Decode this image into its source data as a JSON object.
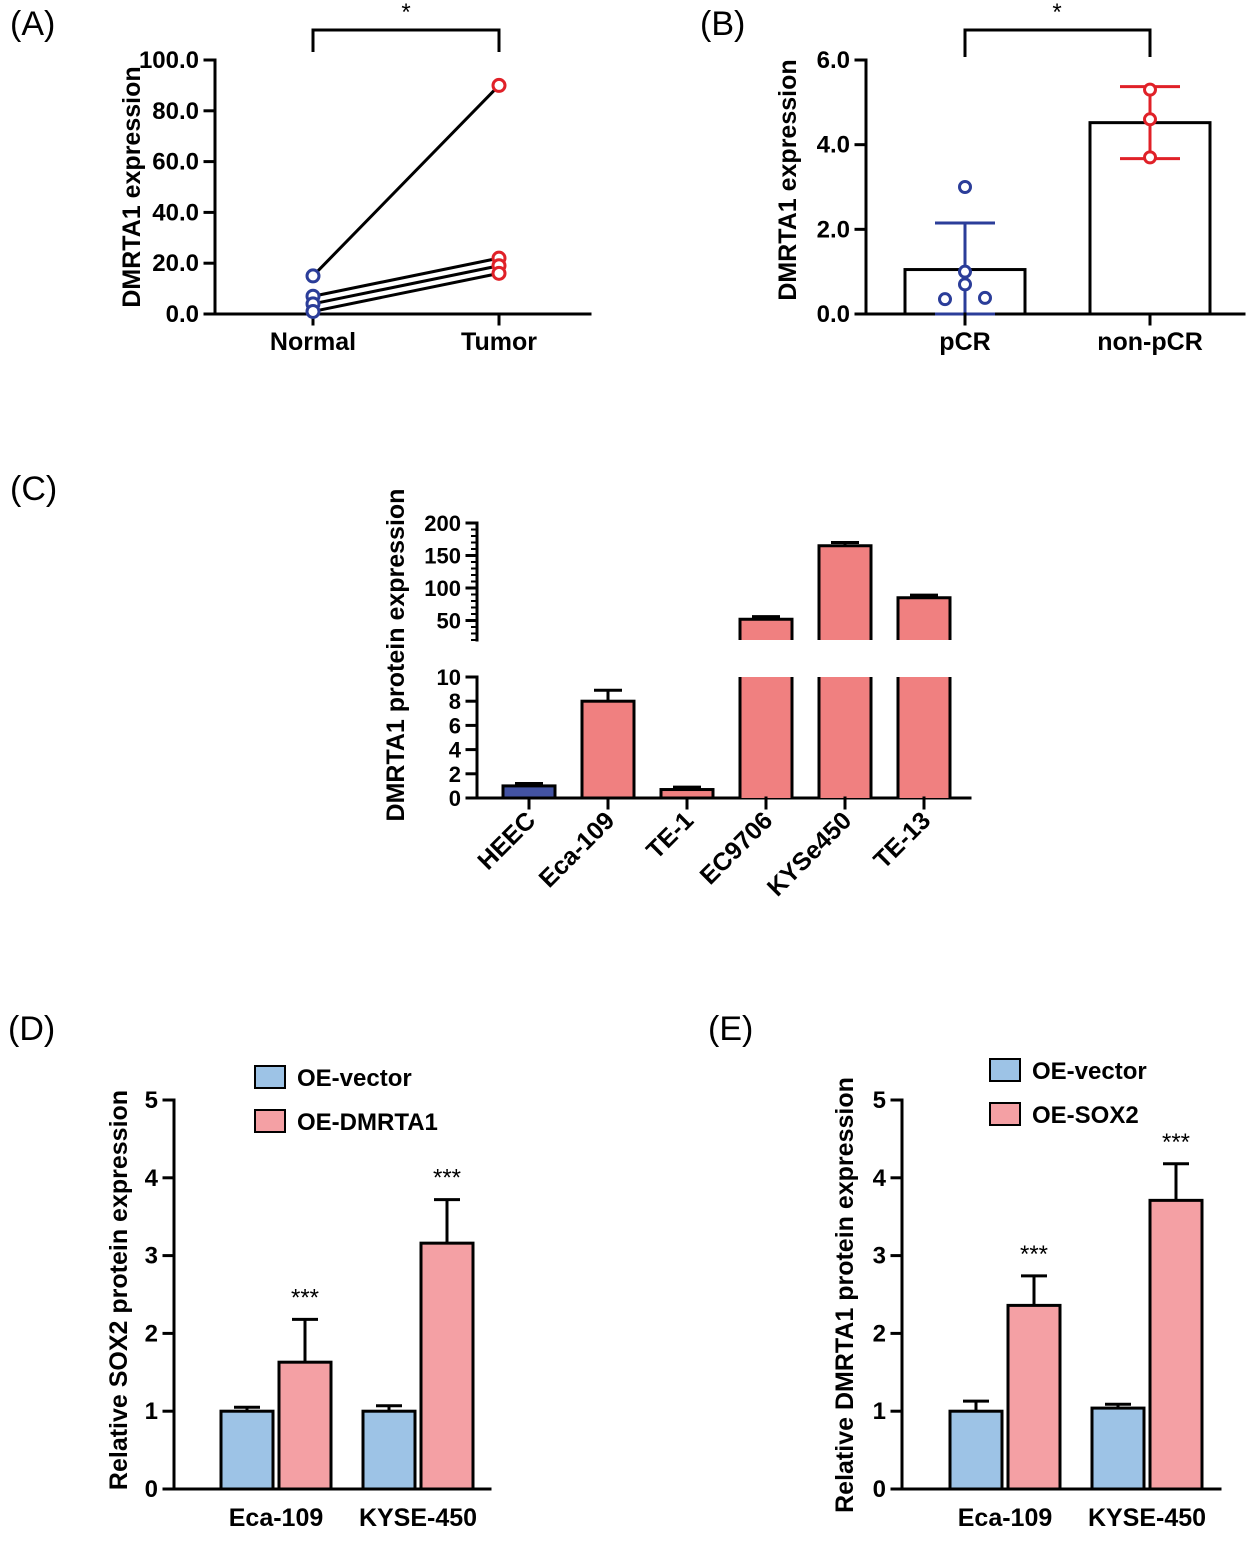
{
  "colors": {
    "normal_blue": "#2b3d99",
    "tumor_red": "#e02128",
    "c_blue": "#4353a3",
    "c_pink": "#f08080",
    "de_blue": "#9dc3e6",
    "de_pink": "#f4a0a4",
    "axis": "#000000"
  },
  "chart_data": [
    {
      "panel": "(A)",
      "type": "scatter",
      "ylabel": "DMRTA1 expression",
      "categories": [
        "Normal",
        "Tumor"
      ],
      "yticks": [
        "0.0",
        "20.0",
        "40.0",
        "60.0",
        "80.0",
        "100.0"
      ],
      "ylim": [
        0,
        100
      ],
      "pairs": [
        [
          15,
          90
        ],
        [
          7,
          22
        ],
        [
          4,
          19
        ],
        [
          1,
          16
        ]
      ],
      "significance": "*"
    },
    {
      "panel": "(B)",
      "type": "bar",
      "ylabel": "DMRTA1 expression",
      "categories": [
        "pCR",
        "non-pCR"
      ],
      "yticks": [
        "0.0",
        "2.0",
        "4.0",
        "6.0"
      ],
      "ylim": [
        0,
        6
      ],
      "values": [
        1.05,
        4.52
      ],
      "errors": [
        1.1,
        0.85
      ],
      "points": [
        [
          0.35,
          0.7,
          1.0,
          0.38,
          3.0
        ],
        [
          3.7,
          4.6,
          5.3
        ]
      ],
      "significance": "*"
    },
    {
      "panel": "(C)",
      "type": "bar",
      "ylabel": "DMRTA1 protein expression",
      "categories": [
        "HEEC",
        "Eca-109",
        "TE-1",
        "EC9706",
        "KYSe450",
        "TE-13"
      ],
      "values": [
        1.0,
        8.0,
        0.7,
        52,
        165,
        85
      ],
      "errors": [
        0.2,
        0.9,
        0.2,
        4,
        5,
        4
      ],
      "lower_yticks": [
        "0",
        "2",
        "4",
        "6",
        "8",
        "10"
      ],
      "upper_yticks": [
        "50",
        "100",
        "150",
        "200"
      ],
      "axis_break": [
        10,
        20
      ]
    },
    {
      "panel": "(D)",
      "type": "bar",
      "ylabel": "Relative SOX2 protein expression",
      "categories": [
        "Eca-109",
        "KYSE-450"
      ],
      "yticks": [
        "0",
        "1",
        "2",
        "3",
        "4",
        "5"
      ],
      "ylim": [
        0,
        5
      ],
      "series": [
        {
          "name": "OE-vector",
          "values": [
            1.0,
            1.0
          ],
          "errors": [
            0.05,
            0.07
          ]
        },
        {
          "name": "OE-DMRTA1",
          "values": [
            1.63,
            3.16
          ],
          "errors": [
            0.55,
            0.56
          ]
        }
      ],
      "significance": [
        "***",
        "***"
      ]
    },
    {
      "panel": "(E)",
      "type": "bar",
      "ylabel": "Relative DMRTA1 protein expression",
      "categories": [
        "Eca-109",
        "KYSE-450"
      ],
      "yticks": [
        "0",
        "1",
        "2",
        "3",
        "4",
        "5"
      ],
      "ylim": [
        0,
        5
      ],
      "series": [
        {
          "name": "OE-vector",
          "values": [
            1.0,
            1.04
          ],
          "errors": [
            0.13,
            0.05
          ]
        },
        {
          "name": "OE-SOX2",
          "values": [
            2.36,
            3.71
          ],
          "errors": [
            0.38,
            0.47
          ]
        }
      ],
      "significance": [
        "***",
        "***"
      ]
    }
  ]
}
